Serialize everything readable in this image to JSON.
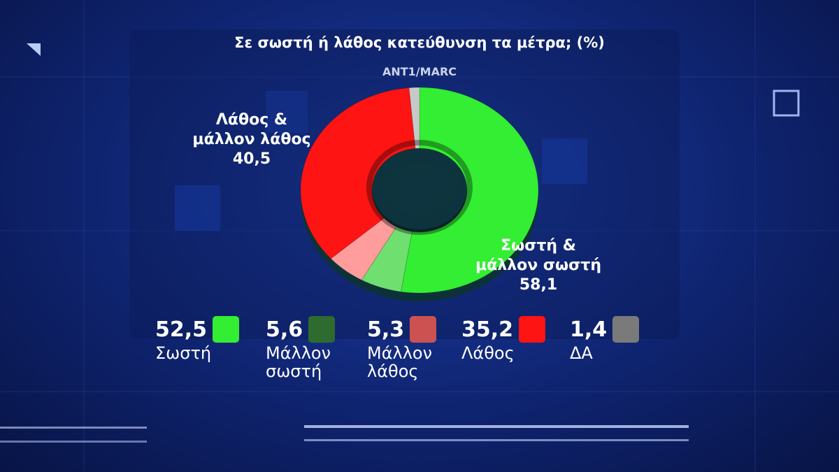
{
  "chart_data": {
    "type": "donut",
    "title": "Σε σωστή ή λάθος κατεύθυνση τα μέτρα; (%)",
    "source": "ANT1/MARC",
    "categories": [
      "Σωστή",
      "Μάλλον σωστή",
      "Μάλλον λάθος",
      "Λάθος",
      "ΔΑ"
    ],
    "values": [
      52.5,
      5.6,
      5.3,
      35.2,
      1.4
    ],
    "value_labels": [
      "52,5",
      "5,6",
      "5,3",
      "35,2",
      "1,4"
    ],
    "colors": [
      "#33ee33",
      "#2e6b2e",
      "#cc5252",
      "#ff1414",
      "#7a7a7a"
    ],
    "slice_colors": [
      "#33ee33",
      "#6fe06f",
      "#ff9c9c",
      "#ff1414",
      "#c8c8c8"
    ],
    "annotations": [
      {
        "lines": [
          "Λάθος &",
          "μάλλον λάθος",
          "40,5"
        ]
      },
      {
        "lines": [
          "Σωστή &",
          "μάλλον σωστή",
          "58,1"
        ]
      }
    ]
  }
}
